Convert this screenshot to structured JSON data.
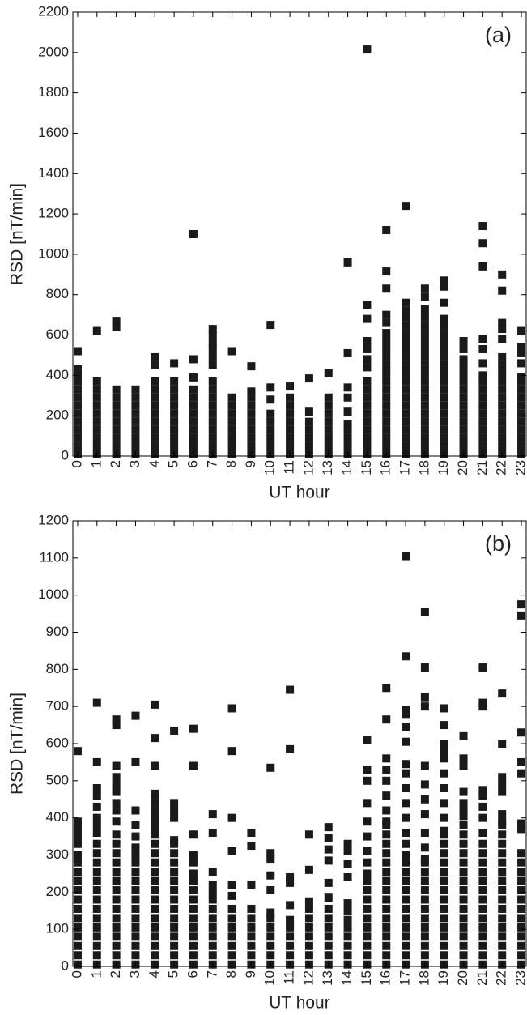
{
  "chart_data": [
    {
      "type": "scatter",
      "annotation": "(a)",
      "ylabel": "RSD [nT/min]",
      "xlabel": "UT hour",
      "color": "#1a1a1a",
      "x": [
        0,
        1,
        2,
        3,
        4,
        5,
        6,
        7,
        8,
        9,
        10,
        11,
        12,
        13,
        14,
        15,
        16,
        17,
        18,
        19,
        20,
        21,
        22,
        23
      ],
      "xlim": [
        -0.25,
        23.25
      ],
      "ylim": [
        0,
        2200
      ],
      "yticks": [
        0,
        200,
        400,
        600,
        800,
        1000,
        1200,
        1400,
        1600,
        1800,
        2000,
        2200
      ],
      "values": [
        [
          10,
          50,
          90,
          130,
          170,
          210,
          250,
          290,
          330,
          370,
          400,
          430,
          520
        ],
        [
          10,
          50,
          90,
          130,
          170,
          210,
          250,
          290,
          330,
          370,
          620
        ],
        [
          10,
          50,
          90,
          130,
          170,
          210,
          250,
          290,
          330,
          640,
          670
        ],
        [
          10,
          50,
          90,
          130,
          170,
          210,
          250,
          290,
          330
        ],
        [
          10,
          50,
          90,
          130,
          170,
          210,
          250,
          290,
          330,
          370,
          450,
          490
        ],
        [
          10,
          50,
          90,
          130,
          170,
          210,
          250,
          290,
          330,
          370,
          460
        ],
        [
          10,
          50,
          90,
          130,
          170,
          210,
          250,
          290,
          330,
          390,
          480,
          1100
        ],
        [
          10,
          50,
          90,
          130,
          170,
          210,
          250,
          290,
          330,
          370,
          450,
          490,
          530,
          560,
          600,
          630
        ],
        [
          10,
          50,
          90,
          130,
          170,
          210,
          250,
          290,
          520
        ],
        [
          10,
          50,
          90,
          130,
          170,
          210,
          250,
          290,
          320,
          445
        ],
        [
          10,
          50,
          90,
          130,
          170,
          210,
          280,
          340,
          650
        ],
        [
          10,
          50,
          90,
          130,
          170,
          210,
          250,
          290,
          345
        ],
        [
          10,
          50,
          90,
          130,
          170,
          220,
          385
        ],
        [
          10,
          50,
          90,
          130,
          170,
          210,
          250,
          290,
          410
        ],
        [
          10,
          50,
          90,
          130,
          160,
          220,
          290,
          340,
          510,
          960
        ],
        [
          10,
          50,
          90,
          130,
          170,
          210,
          250,
          290,
          330,
          370,
          440,
          480,
          530,
          570,
          680,
          750,
          2015
        ],
        [
          10,
          50,
          90,
          130,
          170,
          210,
          250,
          290,
          330,
          370,
          410,
          450,
          490,
          530,
          570,
          610,
          660,
          700,
          830,
          915,
          1120
        ],
        [
          10,
          50,
          90,
          130,
          170,
          210,
          250,
          290,
          330,
          370,
          410,
          450,
          490,
          530,
          570,
          610,
          650,
          690,
          720,
          760,
          1240
        ],
        [
          10,
          50,
          90,
          130,
          170,
          210,
          250,
          290,
          330,
          370,
          410,
          450,
          490,
          530,
          570,
          610,
          650,
          690,
          730,
          790,
          830
        ],
        [
          10,
          50,
          90,
          130,
          170,
          210,
          250,
          290,
          330,
          370,
          410,
          450,
          490,
          530,
          570,
          610,
          650,
          680,
          760,
          840,
          870
        ],
        [
          10,
          50,
          90,
          130,
          170,
          210,
          250,
          290,
          330,
          370,
          410,
          450,
          480,
          530,
          570
        ],
        [
          10,
          50,
          90,
          130,
          170,
          210,
          250,
          290,
          330,
          370,
          400,
          460,
          530,
          580,
          940,
          1055,
          1140
        ],
        [
          10,
          50,
          90,
          130,
          170,
          210,
          250,
          290,
          330,
          370,
          410,
          450,
          490,
          580,
          630,
          660,
          820,
          900
        ],
        [
          10,
          50,
          90,
          130,
          170,
          210,
          250,
          290,
          330,
          370,
          390,
          460,
          510,
          540,
          620
        ]
      ]
    },
    {
      "type": "scatter",
      "annotation": "(b)",
      "ylabel": "RSD [nT/min]",
      "xlabel": "UT hour",
      "color": "#1a1a1a",
      "x": [
        0,
        1,
        2,
        3,
        4,
        5,
        6,
        7,
        8,
        9,
        10,
        11,
        12,
        13,
        14,
        15,
        16,
        17,
        18,
        19,
        20,
        21,
        22,
        23
      ],
      "xlim": [
        -0.25,
        23.25
      ],
      "ylim": [
        0,
        1200
      ],
      "yticks": [
        0,
        100,
        200,
        300,
        400,
        500,
        600,
        700,
        800,
        900,
        1000,
        1100,
        1200
      ],
      "values": [
        [
          5,
          30,
          55,
          80,
          105,
          130,
          155,
          180,
          205,
          230,
          255,
          280,
          300,
          330,
          350,
          370,
          390,
          580
        ],
        [
          5,
          30,
          55,
          80,
          105,
          130,
          155,
          180,
          205,
          230,
          255,
          280,
          305,
          330,
          360,
          380,
          400,
          430,
          460,
          480,
          550,
          710
        ],
        [
          5,
          30,
          55,
          80,
          105,
          130,
          155,
          180,
          205,
          230,
          255,
          280,
          305,
          330,
          355,
          390,
          420,
          440,
          470,
          490,
          510,
          540,
          650,
          665
        ],
        [
          5,
          30,
          55,
          80,
          105,
          130,
          155,
          180,
          205,
          230,
          255,
          280,
          300,
          320,
          350,
          380,
          420,
          550,
          675
        ],
        [
          5,
          30,
          55,
          80,
          105,
          130,
          155,
          180,
          205,
          230,
          255,
          280,
          305,
          330,
          355,
          370,
          390,
          410,
          430,
          450,
          465,
          540,
          615,
          705
        ],
        [
          5,
          30,
          55,
          80,
          105,
          130,
          155,
          180,
          205,
          230,
          255,
          280,
          305,
          330,
          340,
          400,
          420,
          440,
          635
        ],
        [
          5,
          30,
          55,
          80,
          105,
          130,
          155,
          180,
          205,
          230,
          250,
          280,
          300,
          355,
          540,
          640
        ],
        [
          5,
          30,
          55,
          80,
          105,
          130,
          155,
          180,
          200,
          220,
          255,
          360,
          410
        ],
        [
          5,
          30,
          55,
          80,
          105,
          130,
          155,
          190,
          220,
          310,
          400,
          580,
          695
        ],
        [
          5,
          30,
          55,
          80,
          105,
          130,
          155,
          220,
          325,
          360
        ],
        [
          5,
          30,
          55,
          80,
          105,
          130,
          145,
          205,
          245,
          290,
          305,
          535
        ],
        [
          5,
          30,
          55,
          80,
          105,
          125,
          165,
          225,
          240,
          585,
          745
        ],
        [
          5,
          30,
          55,
          80,
          105,
          130,
          155,
          175,
          260,
          355
        ],
        [
          5,
          30,
          55,
          80,
          105,
          130,
          155,
          185,
          225,
          285,
          315,
          345,
          375
        ],
        [
          5,
          30,
          55,
          80,
          105,
          125,
          150,
          170,
          240,
          275,
          310,
          330
        ],
        [
          5,
          30,
          55,
          80,
          105,
          130,
          155,
          180,
          205,
          230,
          250,
          280,
          310,
          350,
          390,
          440,
          500,
          530,
          610
        ],
        [
          5,
          30,
          55,
          80,
          105,
          130,
          155,
          180,
          205,
          230,
          255,
          280,
          305,
          330,
          355,
          380,
          390,
          420,
          460,
          500,
          530,
          560,
          665,
          750
        ],
        [
          5,
          30,
          55,
          80,
          105,
          130,
          155,
          180,
          205,
          230,
          255,
          280,
          300,
          330,
          360,
          400,
          440,
          480,
          520,
          545,
          605,
          645,
          680,
          690,
          835,
          1105
        ],
        [
          5,
          30,
          55,
          80,
          105,
          130,
          155,
          180,
          205,
          230,
          255,
          280,
          290,
          320,
          360,
          410,
          450,
          490,
          540,
          700,
          725,
          805,
          955
        ],
        [
          5,
          30,
          55,
          80,
          105,
          130,
          155,
          180,
          205,
          230,
          255,
          280,
          305,
          330,
          355,
          365,
          400,
          440,
          480,
          520,
          560,
          580,
          600,
          650,
          695
        ],
        [
          5,
          30,
          55,
          80,
          105,
          130,
          155,
          180,
          205,
          230,
          255,
          280,
          305,
          330,
          355,
          380,
          405,
          420,
          440,
          470,
          540,
          560,
          620
        ],
        [
          5,
          30,
          55,
          80,
          105,
          130,
          155,
          180,
          205,
          230,
          255,
          280,
          305,
          330,
          360,
          400,
          430,
          460,
          475,
          700,
          710,
          805
        ],
        [
          5,
          30,
          55,
          80,
          105,
          130,
          155,
          180,
          205,
          230,
          255,
          280,
          305,
          330,
          355,
          380,
          390,
          410,
          470,
          490,
          510,
          600,
          735
        ],
        [
          5,
          30,
          55,
          80,
          105,
          130,
          155,
          180,
          205,
          230,
          255,
          280,
          305,
          370,
          385,
          520,
          550,
          630,
          945,
          975
        ]
      ]
    }
  ]
}
